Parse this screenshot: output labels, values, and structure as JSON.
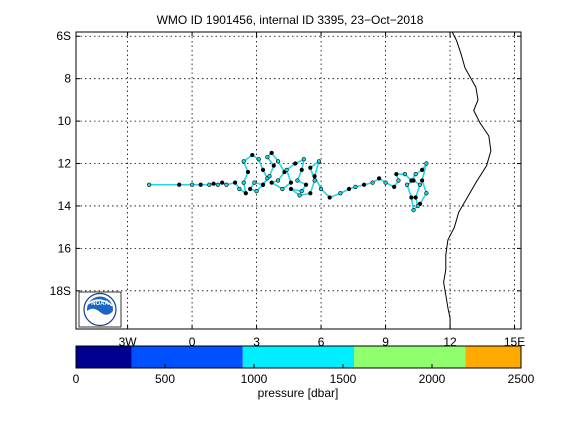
{
  "chart_data": {
    "type": "scatter",
    "title": "WMO ID 1901456, internal ID 3395, 23−Oct−2018",
    "xlim": [
      -5.4,
      15.3
    ],
    "ylim": [
      -19.8,
      -5.8
    ],
    "grid": true,
    "x_ticks": [
      {
        "value": -3,
        "label": "3W"
      },
      {
        "value": 0,
        "label": "0"
      },
      {
        "value": 3,
        "label": "3"
      },
      {
        "value": 6,
        "label": "6"
      },
      {
        "value": 9,
        "label": "9"
      },
      {
        "value": 12,
        "label": "12"
      },
      {
        "value": 15,
        "label": "15E"
      }
    ],
    "y_ticks": [
      {
        "value": -6,
        "label": "6S"
      },
      {
        "value": -8,
        "label": "8"
      },
      {
        "value": -10,
        "label": "10"
      },
      {
        "value": -12,
        "label": "12"
      },
      {
        "value": -14,
        "label": "14"
      },
      {
        "value": -16,
        "label": "16"
      },
      {
        "value": -18,
        "label": "18S"
      }
    ],
    "coastline": [
      [
        12.1,
        -5.8
      ],
      [
        12.3,
        -6.2
      ],
      [
        12.5,
        -6.8
      ],
      [
        12.7,
        -7.5
      ],
      [
        13.2,
        -8.4
      ],
      [
        13.3,
        -9.0
      ],
      [
        13.1,
        -9.5
      ],
      [
        13.4,
        -10.1
      ],
      [
        13.8,
        -10.7
      ],
      [
        13.9,
        -11.4
      ],
      [
        13.7,
        -12.1
      ],
      [
        13.2,
        -12.9
      ],
      [
        12.8,
        -13.6
      ],
      [
        12.4,
        -14.3
      ],
      [
        12.2,
        -15.0
      ],
      [
        11.9,
        -15.6
      ],
      [
        11.8,
        -16.3
      ],
      [
        11.8,
        -17.0
      ],
      [
        11.7,
        -17.6
      ],
      [
        11.8,
        -18.2
      ],
      [
        11.9,
        -18.8
      ],
      [
        12.0,
        -19.3
      ],
      [
        12.0,
        -19.8
      ]
    ],
    "series": [
      {
        "values": [
          [
            -2.0,
            -13.0
          ],
          [
            -0.6,
            -13.0
          ],
          [
            0.0,
            -13.0
          ],
          [
            0.4,
            -13.0
          ],
          [
            0.8,
            -13.0
          ],
          [
            1.0,
            -12.95
          ],
          [
            1.2,
            -13.0
          ],
          [
            1.4,
            -12.9
          ],
          [
            1.6,
            -13.0
          ],
          [
            2.0,
            -12.9
          ],
          [
            2.2,
            -13.2
          ],
          [
            2.5,
            -13.4
          ],
          [
            2.4,
            -12.9
          ],
          [
            2.6,
            -12.4
          ],
          [
            2.4,
            -11.9
          ],
          [
            2.8,
            -11.6
          ],
          [
            3.1,
            -11.8
          ],
          [
            3.3,
            -12.3
          ],
          [
            3.5,
            -12.7
          ],
          [
            3.3,
            -13.0
          ],
          [
            2.9,
            -12.9
          ],
          [
            2.7,
            -13.2
          ],
          [
            3.0,
            -13.3
          ],
          [
            3.3,
            -13.0
          ],
          [
            3.6,
            -12.6
          ],
          [
            3.8,
            -12.1
          ],
          [
            3.5,
            -11.7
          ],
          [
            3.7,
            -11.5
          ],
          [
            4.0,
            -11.9
          ],
          [
            4.3,
            -12.4
          ],
          [
            4.0,
            -12.8
          ],
          [
            3.7,
            -12.9
          ],
          [
            4.2,
            -13.2
          ],
          [
            4.6,
            -12.9
          ],
          [
            4.4,
            -12.3
          ],
          [
            4.8,
            -12.0
          ],
          [
            5.2,
            -11.8
          ],
          [
            5.1,
            -12.3
          ],
          [
            4.9,
            -12.8
          ],
          [
            5.3,
            -13.0
          ],
          [
            5.1,
            -13.3
          ],
          [
            4.6,
            -13.2
          ],
          [
            5.0,
            -13.5
          ],
          [
            5.5,
            -13.4
          ],
          [
            5.7,
            -12.8
          ],
          [
            5.5,
            -12.2
          ],
          [
            5.9,
            -11.9
          ],
          [
            5.7,
            -12.6
          ],
          [
            6.0,
            -13.2
          ],
          [
            6.4,
            -13.6
          ],
          [
            6.9,
            -13.4
          ],
          [
            7.3,
            -13.2
          ],
          [
            7.6,
            -13.1
          ],
          [
            8.0,
            -13.0
          ],
          [
            8.4,
            -12.9
          ],
          [
            8.7,
            -12.7
          ],
          [
            9.0,
            -12.9
          ],
          [
            9.4,
            -13.1
          ],
          [
            9.6,
            -12.8
          ],
          [
            9.5,
            -12.5
          ],
          [
            9.9,
            -12.5
          ],
          [
            10.2,
            -12.8
          ],
          [
            10.4,
            -12.5
          ],
          [
            10.7,
            -12.3
          ],
          [
            10.9,
            -12.0
          ],
          [
            10.7,
            -12.8
          ],
          [
            10.9,
            -13.4
          ],
          [
            10.6,
            -13.9
          ],
          [
            10.3,
            -14.2
          ],
          [
            10.2,
            -13.6
          ],
          [
            10.0,
            -13.0
          ],
          [
            10.3,
            -12.8
          ],
          [
            10.6,
            -13.0
          ],
          [
            10.4,
            -13.6
          ],
          [
            10.5,
            -14.0
          ]
        ]
      }
    ],
    "colorbar": {
      "label": "pressure [dbar]",
      "min": 0,
      "max": 2500,
      "ticks": [
        "0",
        "500",
        "1000",
        "1500",
        "2000",
        "2500"
      ],
      "bands": [
        {
          "from": 0,
          "to": 312,
          "color": "#00008f"
        },
        {
          "from": 312,
          "to": 937,
          "color": "#0050ff"
        },
        {
          "from": 937,
          "to": 1562,
          "color": "#00eeff"
        },
        {
          "from": 1562,
          "to": 2187,
          "color": "#8fff6f"
        },
        {
          "from": 2187,
          "to": 2500,
          "color": "#ffaa00"
        }
      ]
    },
    "colors": {
      "track": "#000000",
      "track_fill": "#22d7e6",
      "coast": "#000000",
      "grid": "#000000"
    },
    "logo": {
      "icon": "noaa-logo-icon",
      "text": "NOAA"
    }
  }
}
